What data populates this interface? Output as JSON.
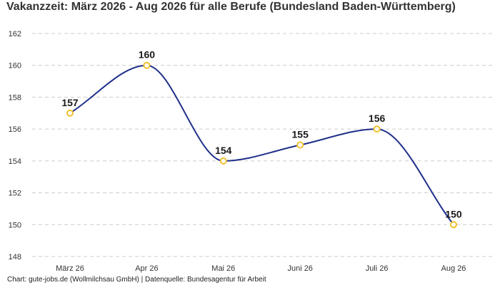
{
  "title": "Vakanzzeit: März 2026 - Aug 2026 für alle Berufe (Bundesland Baden-Württemberg)",
  "footer": {
    "text": "Chart: gute-jobs.de (Wollmilchsau GmbH) | Datenquelle: Bundesagentur für Arbeit"
  },
  "colors": {
    "line": "#1f2f8a",
    "point_stroke": "#f2c12e",
    "point_fill": "#ffffff",
    "grid": "#cccccc",
    "text": "#333333"
  },
  "chart_data": {
    "type": "line",
    "title": "Vakanzzeit: März 2026 - Aug 2026 für alle Berufe (Bundesland Baden-Württemberg)",
    "xlabel": "",
    "ylabel": "",
    "categories": [
      "März 26",
      "Apr 26",
      "Mai 26",
      "Juni 26",
      "Juli 26",
      "Aug 26"
    ],
    "values": [
      157,
      160,
      154,
      155,
      156,
      150
    ],
    "data_labels": [
      "157",
      "160",
      "154",
      "155",
      "156",
      "150"
    ],
    "ylim": [
      148,
      162
    ],
    "yticks": [
      148,
      150,
      152,
      154,
      156,
      158,
      160,
      162
    ],
    "ytick_labels": [
      "148",
      "150",
      "152",
      "154",
      "156",
      "158",
      "160",
      "162"
    ],
    "grid": "horizontal-dashed",
    "legend": "none",
    "curve": "smooth"
  }
}
